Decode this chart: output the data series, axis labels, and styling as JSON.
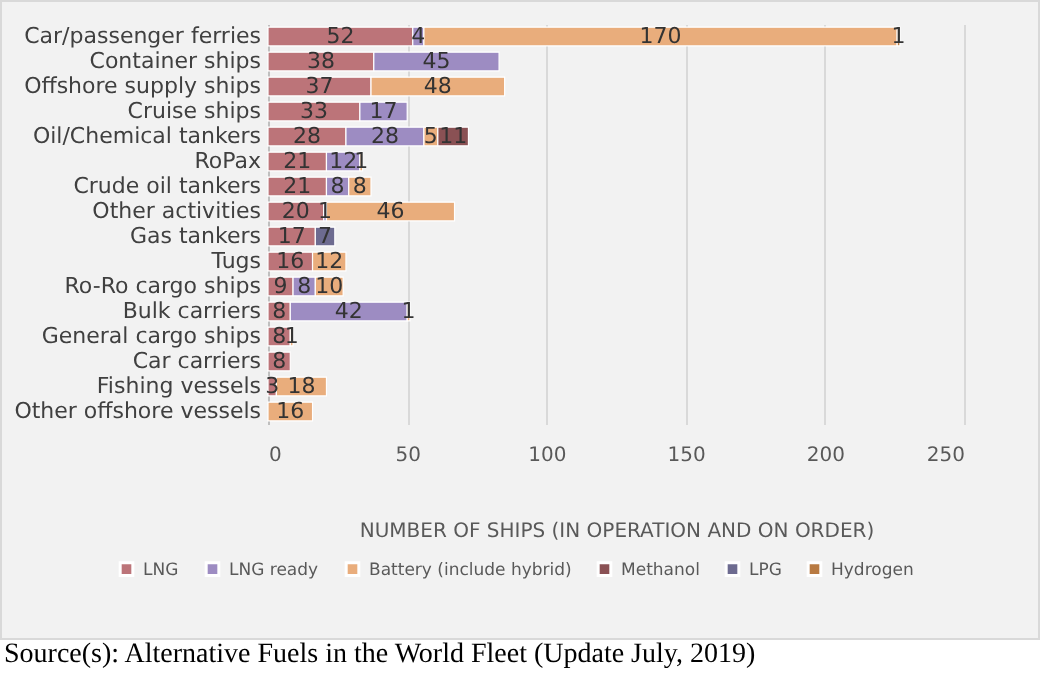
{
  "chart_data": {
    "type": "bar",
    "orientation": "horizontal",
    "stacked": true,
    "data_labels": true,
    "grid": "x",
    "legend": "bottom",
    "xlabel": "NUMBER OF SHIPS (IN OPERATION AND ON ORDER)",
    "categories": [
      "Car/passenger ferries",
      "Container ships",
      "Offshore supply ships",
      "Cruise ships",
      "Oil/Chemical tankers",
      "RoPax",
      "Crude oil tankers",
      "Other activities",
      "Gas tankers",
      "Tugs",
      "Ro-Ro cargo ships",
      "Bulk carriers",
      "General cargo ships",
      "Car carriers",
      "Fishing vessels",
      "Other offshore vessels"
    ],
    "series": [
      {
        "name": "LNG",
        "color": "#bc7479",
        "values": [
          52,
          38,
          37,
          33,
          28,
          21,
          21,
          20,
          17,
          16,
          9,
          8,
          8,
          8,
          3,
          null
        ]
      },
      {
        "name": "LNG ready",
        "color": "#9d8cc2",
        "values": [
          4,
          45,
          null,
          17,
          28,
          12,
          8,
          1,
          null,
          null,
          8,
          42,
          null,
          null,
          null,
          null
        ]
      },
      {
        "name": "Battery (include hybrid)",
        "color": "#e9ad7c",
        "values": [
          170,
          null,
          48,
          null,
          5,
          1,
          8,
          46,
          null,
          12,
          10,
          1,
          1,
          null,
          18,
          16
        ]
      },
      {
        "name": "Methanol",
        "color": "#8a5154",
        "values": [
          null,
          null,
          null,
          null,
          11,
          null,
          null,
          null,
          null,
          null,
          null,
          null,
          null,
          null,
          null,
          null
        ]
      },
      {
        "name": "LPG",
        "color": "#6d6b90",
        "values": [
          null,
          null,
          null,
          null,
          null,
          null,
          null,
          null,
          7,
          null,
          null,
          null,
          null,
          null,
          null,
          null
        ]
      },
      {
        "name": "Hydrogen",
        "color": "#b87a42",
        "values": [
          1,
          null,
          null,
          null,
          null,
          null,
          null,
          null,
          null,
          null,
          null,
          null,
          null,
          null,
          null,
          null
        ]
      }
    ],
    "xlim": [
      0,
      250
    ],
    "xticks": [
      0,
      50,
      100,
      150,
      200,
      250
    ],
    "annotations": [
      "Source(s): Alternative Fuels in the World Fleet (Update July, 2019)"
    ]
  }
}
